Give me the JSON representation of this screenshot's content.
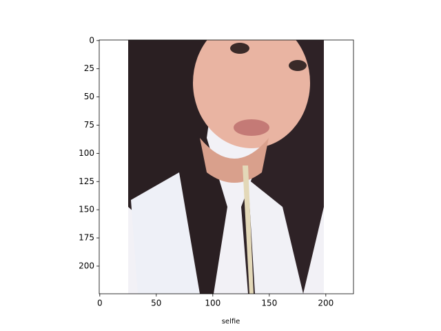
{
  "chart_data": {
    "type": "image",
    "xlabel": "selfie",
    "xlim": [
      -0.5,
      224.5
    ],
    "ylim": [
      224.5,
      -0.5
    ],
    "xticks": [
      0,
      50,
      100,
      150,
      200
    ],
    "yticks": [
      0,
      25,
      50,
      75,
      100,
      125,
      150,
      175,
      200
    ]
  }
}
